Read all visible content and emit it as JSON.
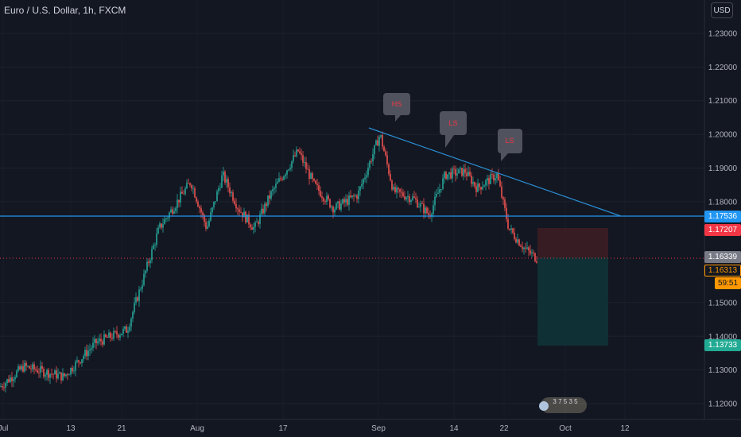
{
  "header": {
    "symbol_title": "Euro / U.S. Dollar, 1h, FXCM",
    "currency_button": "USD"
  },
  "price_axis": {
    "ticks": [
      "1.23000",
      "1.22000",
      "1.21000",
      "1.20000",
      "1.19000",
      "1.18000",
      "1.15000",
      "1.14000",
      "1.13000",
      "1.12000"
    ]
  },
  "time_axis": {
    "ticks": [
      "Jul",
      "13",
      "21",
      "Aug",
      "17",
      "Sep",
      "14",
      "22",
      "Oct",
      "12"
    ]
  },
  "price_labels": {
    "resistance": "1.17536",
    "stop_loss": "1.17207",
    "current": "1.16339",
    "bid": "1.16313",
    "countdown": "59:51",
    "take_profit": "1.13733"
  },
  "callouts": {
    "head": "HS",
    "shoulder_left": "LS",
    "shoulder_right": "LS"
  },
  "position": {
    "type": "short",
    "entry": 1.16339,
    "stop": 1.17207,
    "target": 1.13733
  },
  "events_badge": "3 7 5 3 5",
  "colors": {
    "background": "#131722",
    "resistance_line": "#2196f3",
    "trend_line": "#2962ff",
    "candle_up": "#26a69a",
    "candle_down": "#ef5350",
    "stop_zone": "#3d1d24",
    "target_zone": "#0f3136",
    "current_price": "#787b86",
    "stop_label": "#f23645",
    "bid_label": "#ff9800",
    "target_label": "#22ab94"
  }
}
